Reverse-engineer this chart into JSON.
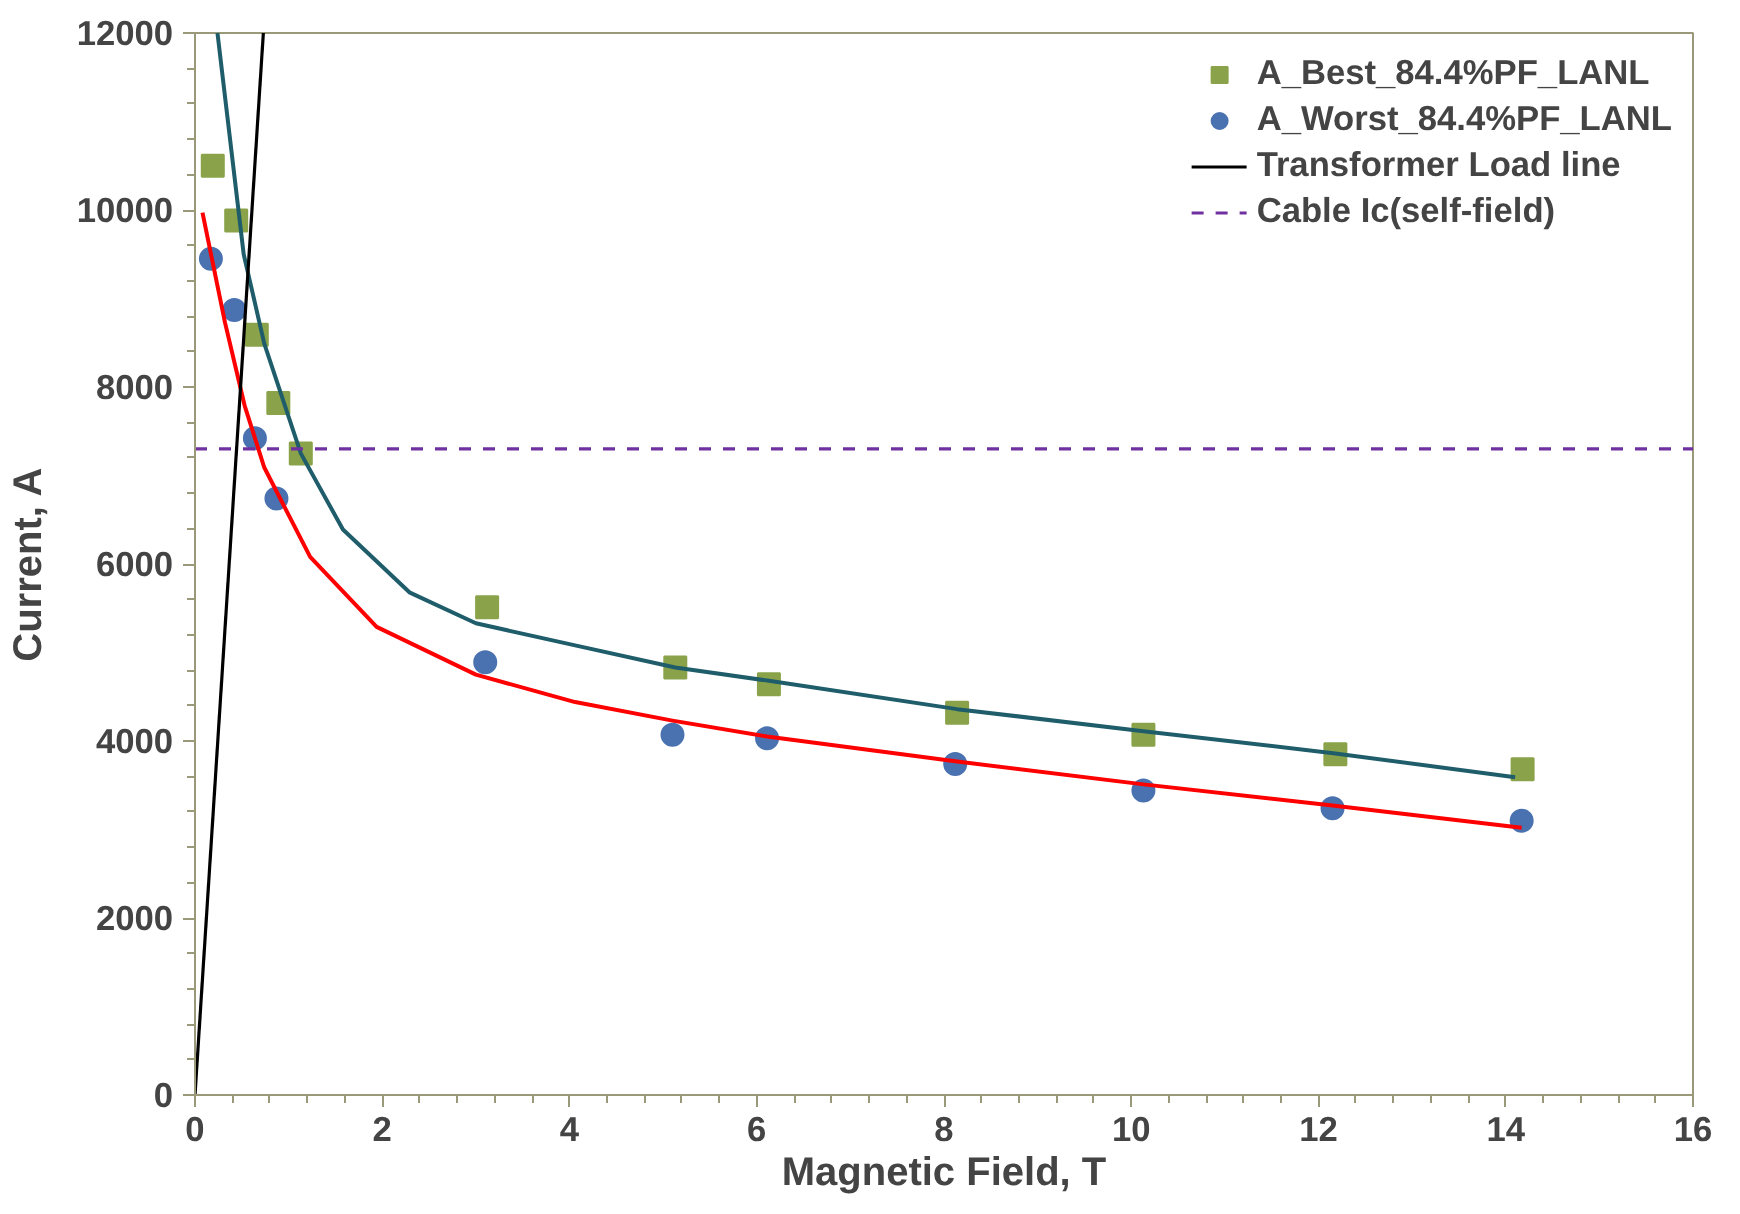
{
  "chart_data": {
    "type": "scatter",
    "xlabel": "Magnetic Field, T",
    "ylabel": "Current, A",
    "xlim": [
      0,
      16
    ],
    "ylim": [
      0,
      12000
    ],
    "xticks": [
      0,
      2,
      4,
      6,
      8,
      10,
      12,
      14,
      16
    ],
    "yticks": [
      0,
      2000,
      4000,
      6000,
      8000,
      10000,
      12000
    ],
    "grid": false,
    "legend": "top right",
    "series": [
      {
        "name": "A_Best_84.4%PF_LANL",
        "color": "#8aa34a",
        "marker": "square",
        "x": [
          0.19,
          0.44,
          0.66,
          0.89,
          1.13,
          3.12,
          5.13,
          6.13,
          8.14,
          10.13,
          12.18,
          14.18
        ],
        "values": [
          10500,
          9880,
          8590,
          7820,
          7250,
          5510,
          4830,
          4640,
          4320,
          4070,
          3850,
          3680
        ]
      },
      {
        "name": "A_Worst_84.4%PF_LANL",
        "color": "#4a72b0",
        "marker": "circle",
        "x": [
          0.17,
          0.42,
          0.64,
          0.87,
          3.1,
          5.1,
          6.11,
          8.12,
          10.13,
          12.15,
          14.17
        ],
        "values": [
          9450,
          8870,
          7420,
          6740,
          4890,
          4070,
          4030,
          3740,
          3440,
          3240,
          3100
        ]
      },
      {
        "type": "line",
        "color": "#1f5d6b",
        "marker": "none",
        "x": [
          0.24,
          0.52,
          0.74,
          1.13,
          1.58,
          2.29,
          3.0,
          4.06,
          5.13,
          6.13,
          8.14,
          10.13,
          12.18,
          14.1
        ],
        "values": [
          12000,
          9500,
          8490,
          7250,
          6390,
          5680,
          5330,
          5080,
          4830,
          4680,
          4360,
          4110,
          3860,
          3590
        ]
      },
      {
        "type": "line",
        "color": "#ff0000",
        "marker": "none",
        "x": [
          0.08,
          0.32,
          0.53,
          0.74,
          1.23,
          1.94,
          3.0,
          4.06,
          5.1,
          6.11,
          8.12,
          10.13,
          12.15,
          14.17
        ],
        "values": [
          9970,
          8730,
          7790,
          7090,
          6080,
          5290,
          4750,
          4440,
          4230,
          4050,
          3770,
          3510,
          3270,
          3020
        ]
      },
      {
        "name": "Transformer Load line",
        "type": "line",
        "color": "#000000",
        "marker": "none",
        "x": [
          0,
          0.73
        ],
        "values": [
          0,
          12000
        ]
      }
    ],
    "ref_lines": [
      {
        "axis": "y",
        "value": 7300,
        "label": "Cable Ic(self-field)",
        "color": "#7030a0",
        "line_style": "dashed"
      }
    ]
  }
}
